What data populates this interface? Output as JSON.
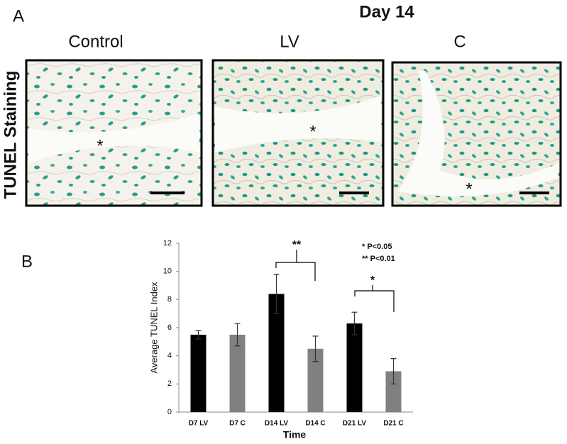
{
  "panel_a": {
    "label": "A",
    "title": "Day 14",
    "columns": [
      "Control",
      "LV",
      "C"
    ],
    "row_label": "TUNEL Staining",
    "markers": [
      "*",
      "*",
      "*"
    ]
  },
  "chart_data": {
    "type": "bar",
    "panel_label": "B",
    "categories": [
      "D7 LV",
      "D7 C",
      "D14 LV",
      "D14 C",
      "D21 LV",
      "D21 C"
    ],
    "values": [
      5.5,
      5.5,
      8.4,
      4.5,
      6.3,
      2.9
    ],
    "errors": [
      0.3,
      0.8,
      1.4,
      0.9,
      0.8,
      0.9
    ],
    "colors": [
      "#000000",
      "#808080",
      "#000000",
      "#808080",
      "#000000",
      "#808080"
    ],
    "xlabel": "Time",
    "ylabel": "Average TUNEL Index",
    "ylim": [
      0,
      12
    ],
    "yticks": [
      0,
      2,
      4,
      6,
      8,
      10,
      12
    ],
    "grid": false,
    "annotations": [
      "**",
      "*",
      "* P<0.05",
      "** P<0.01"
    ]
  }
}
